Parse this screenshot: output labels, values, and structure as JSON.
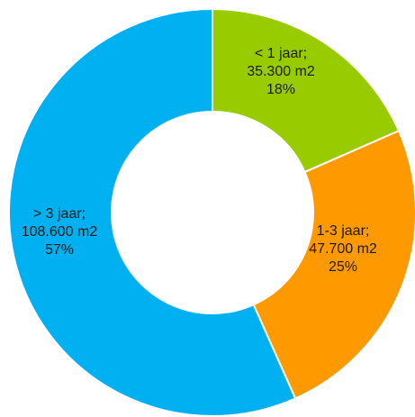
{
  "chart_data": {
    "type": "pie",
    "subtype": "donut",
    "slices": [
      {
        "category": "< 1 jaar",
        "value": 35300,
        "percent": 18,
        "color": "#99CC00",
        "label_lines": [
          "< 1 jaar;",
          "35.300 m2",
          "18%"
        ]
      },
      {
        "category": "1-3 jaar",
        "value": 47700,
        "percent": 25,
        "color": "#FF9900",
        "label_lines": [
          "1-3 jaar;",
          "47.700 m2",
          "25%"
        ]
      },
      {
        "category": "> 3 jaar",
        "value": 108600,
        "percent": 57,
        "color": "#00B0F0",
        "label_lines": [
          "> 3 jaar;",
          "108.600 m2",
          "57%"
        ]
      }
    ],
    "start_angle": "12 o'clock",
    "direction": "clockwise",
    "legend": "none"
  }
}
